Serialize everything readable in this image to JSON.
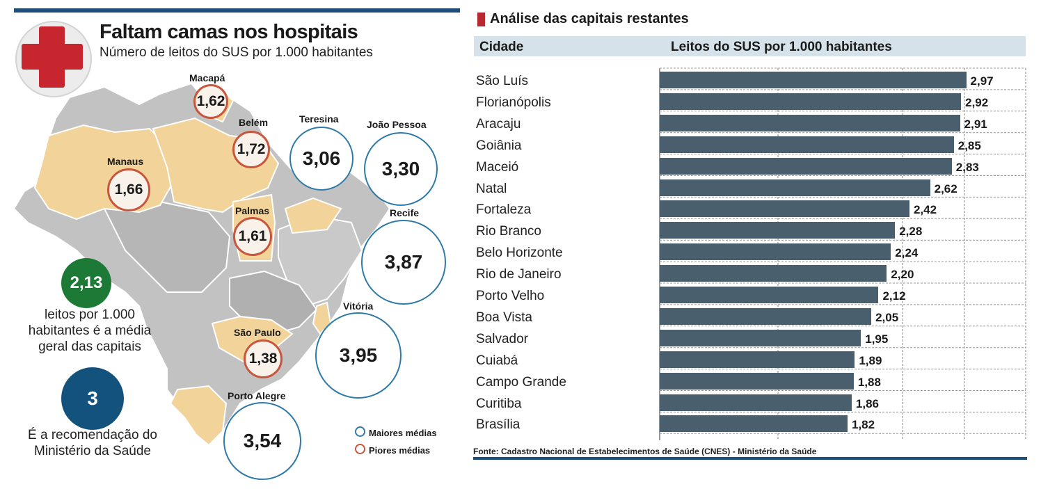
{
  "left_panel": {
    "title": "Faltam camas nos hospitais",
    "subtitle": "Número de leitos do SUS por 1.000 habitantes",
    "average_value": "2,13",
    "average_text": "leitos por 1.000\nhabitantes é a média\ngeral das capitais",
    "recommendation_value": "3",
    "recommendation_text": "É a recomendação do\nMinistério da Saúde",
    "legend_best": "Maiores médias",
    "legend_worst": "Piores médias",
    "colors": {
      "best": "#2e7aa8",
      "worst": "#c8553c",
      "average": "#1d7a36",
      "recommendation": "#14527e",
      "highlight_state": "#f2d49a",
      "other_state": "#c2c2c2"
    }
  },
  "chart_data": [
    {
      "type": "map",
      "title": "Faltam camas nos hospitais",
      "subtitle": "Número de leitos do SUS por 1.000 habitantes",
      "points": [
        {
          "city": "Macapá",
          "value": "1,62",
          "group": "worst"
        },
        {
          "city": "Belém",
          "value": "1,72",
          "group": "worst"
        },
        {
          "city": "Manaus",
          "value": "1,66",
          "group": "worst"
        },
        {
          "city": "Palmas",
          "value": "1,61",
          "group": "worst"
        },
        {
          "city": "São Paulo",
          "value": "1,38",
          "group": "worst"
        },
        {
          "city": "Teresina",
          "value": "3,06",
          "group": "best"
        },
        {
          "city": "João Pessoa",
          "value": "3,30",
          "group": "best"
        },
        {
          "city": "Recife",
          "value": "3,87",
          "group": "best"
        },
        {
          "city": "Vitória",
          "value": "3,95",
          "group": "best"
        },
        {
          "city": "Porto Alegre",
          "value": "3,54",
          "group": "best"
        }
      ]
    },
    {
      "type": "bar",
      "orientation": "horizontal",
      "title": "Análise das capitais restantes",
      "col_city": "Cidade",
      "col_value": "Leitos do SUS por 1.000 habitantes",
      "xlim": [
        0,
        3.0
      ],
      "grid": true,
      "categories": [
        "São Luís",
        "Florianópolis",
        "Aracaju",
        "Goiânia",
        "Maceió",
        "Natal",
        "Fortaleza",
        "Rio Branco",
        "Belo Horizonte",
        "Rio de Janeiro",
        "Porto Velho",
        "Boa Vista",
        "Salvador",
        "Cuiabá",
        "Campo Grande",
        "Curitiba",
        "Brasília"
      ],
      "values": [
        2.97,
        2.92,
        2.91,
        2.85,
        2.83,
        2.62,
        2.42,
        2.28,
        2.24,
        2.2,
        2.12,
        2.05,
        1.95,
        1.89,
        1.88,
        1.86,
        1.82
      ],
      "labels": [
        "2,97",
        "2,92",
        "2,91",
        "2,85",
        "2,83",
        "2,62",
        "2,42",
        "2,28",
        "2,24",
        "2,20",
        "2,12",
        "2,05",
        "1,95",
        "1,89",
        "1,88",
        "1,86",
        "1,82"
      ],
      "source": "Fonte: Cadastro Nacional de Estabelecimentos de Saúde (CNES) - Ministério da Saúde",
      "bar_color": "#4a5f6e"
    }
  ]
}
